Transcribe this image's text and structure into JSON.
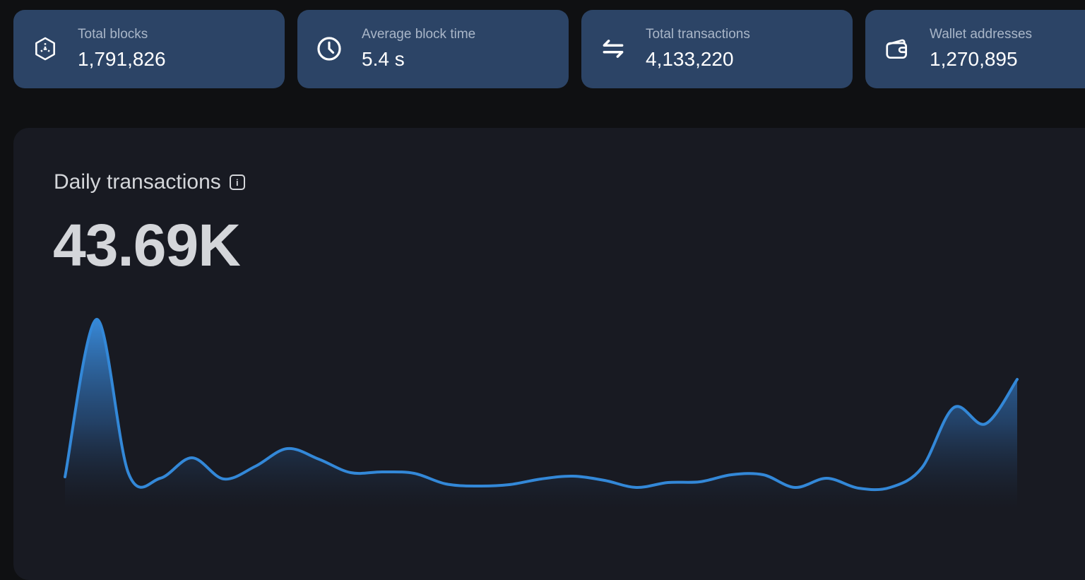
{
  "stats": [
    {
      "label": "Total blocks",
      "value": "1,791,826",
      "icon": "cube-icon"
    },
    {
      "label": "Average block time",
      "value": "5.4 s",
      "icon": "clock-icon"
    },
    {
      "label": "Total transactions",
      "value": "4,133,220",
      "icon": "arrows-exchange-icon"
    },
    {
      "label": "Wallet addresses",
      "value": "1,270,895",
      "icon": "wallet-icon"
    }
  ],
  "panel": {
    "title": "Daily transactions",
    "value": "43.69K",
    "info_glyph": "i"
  },
  "colors": {
    "background": "#0f1012",
    "card": "#2c4466",
    "panel": "#181a22",
    "line": "#3388d8"
  },
  "chart_data": {
    "type": "area",
    "title": "",
    "xlabel": "",
    "ylabel": "",
    "grid": false,
    "axes_shown": false,
    "series": [
      {
        "values": [
          45,
          268,
          50,
          43,
          72,
          42,
          60,
          85,
          70,
          51,
          52,
          50,
          35,
          32,
          34,
          42,
          46,
          40,
          30,
          37,
          38,
          48,
          48,
          30,
          43,
          29,
          30,
          58,
          143,
          120,
          183
        ]
      }
    ]
  }
}
